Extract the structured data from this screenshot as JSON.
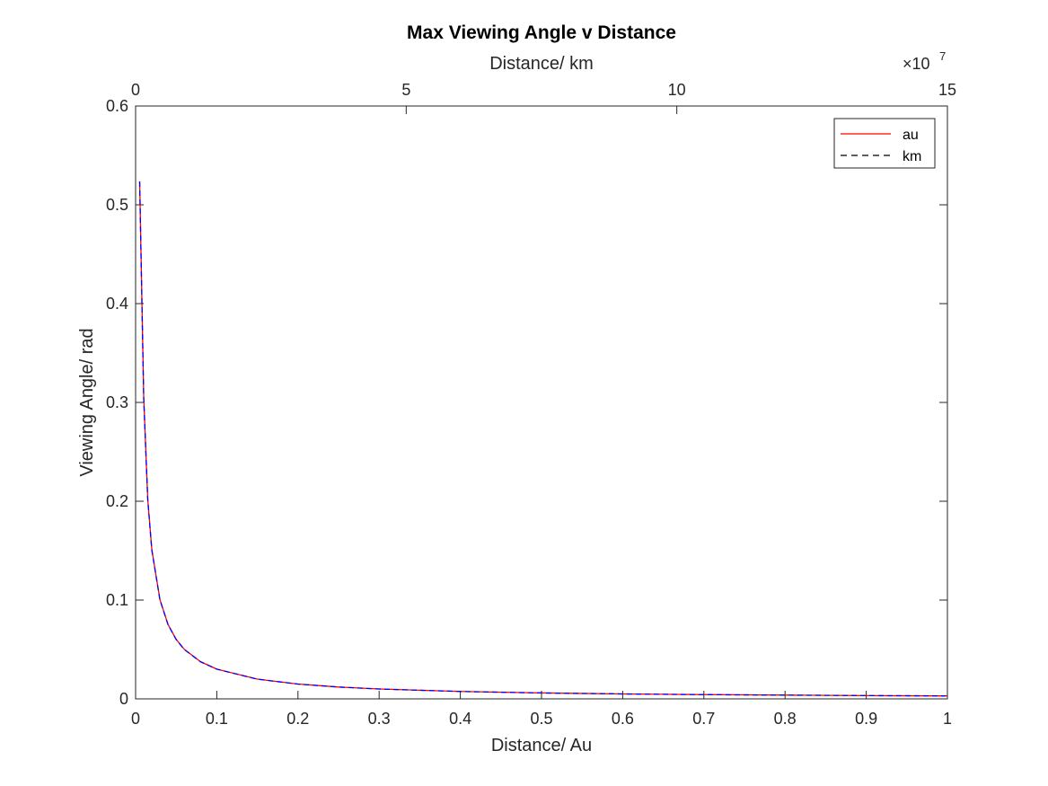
{
  "chart_data": {
    "type": "line",
    "title": "Max Viewing Angle v Distance",
    "xlabel": "Distance/ Au",
    "ylabel": "Viewing Angle/ rad",
    "x2label": "Distance/ km",
    "x2_exponent_base": "×10",
    "x2_exponent": "7",
    "xlim": [
      0,
      1
    ],
    "ylim": [
      0,
      0.6
    ],
    "x2lim": [
      0,
      15
    ],
    "xticks": [
      "0",
      "0.1",
      "0.2",
      "0.3",
      "0.4",
      "0.5",
      "0.6",
      "0.7",
      "0.8",
      "0.9",
      "1"
    ],
    "yticks": [
      "0",
      "0.1",
      "0.2",
      "0.3",
      "0.4",
      "0.5",
      "0.6"
    ],
    "x2ticks": [
      "0",
      "5",
      "10",
      "15"
    ],
    "grid": false,
    "legend_position": "top-right",
    "series": [
      {
        "name": "au",
        "color": "#ff0000",
        "style": "solid",
        "axis": "bottom",
        "x": [
          0.005,
          0.01,
          0.015,
          0.02,
          0.03,
          0.04,
          0.05,
          0.06,
          0.08,
          0.1,
          0.15,
          0.2,
          0.25,
          0.3,
          0.4,
          0.5,
          0.6,
          0.7,
          0.8,
          0.9,
          1.0
        ],
        "y": [
          0.5236,
          0.3045,
          0.2015,
          0.1508,
          0.1004,
          0.0752,
          0.0602,
          0.0501,
          0.0376,
          0.0301,
          0.02,
          0.015,
          0.012,
          0.01,
          0.0075,
          0.006,
          0.005,
          0.0043,
          0.0038,
          0.0033,
          0.003
        ]
      },
      {
        "name": "km",
        "color": "#0000ff",
        "style": "dashed",
        "axis": "top",
        "x": [
          0.0748,
          0.1496,
          0.2244,
          0.2992,
          0.4488,
          0.5984,
          0.748,
          0.8976,
          1.1968,
          1.496,
          2.244,
          2.992,
          3.74,
          4.488,
          5.984,
          7.48,
          8.976,
          10.472,
          11.968,
          13.464,
          14.96
        ],
        "y": [
          0.5236,
          0.3045,
          0.2015,
          0.1508,
          0.1004,
          0.0752,
          0.0602,
          0.0501,
          0.0376,
          0.0301,
          0.02,
          0.015,
          0.012,
          0.01,
          0.0075,
          0.006,
          0.005,
          0.0043,
          0.0038,
          0.0033,
          0.003
        ]
      }
    ]
  }
}
